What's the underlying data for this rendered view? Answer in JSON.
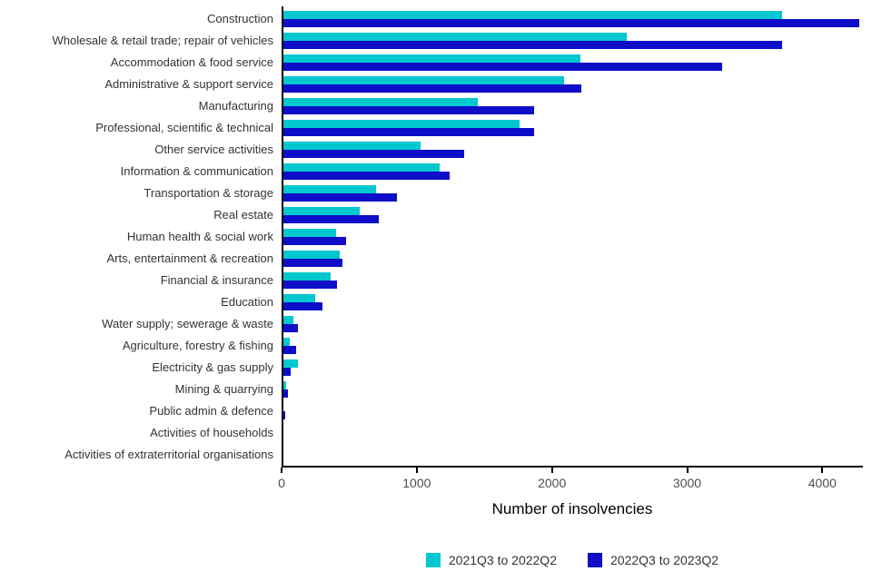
{
  "chart_data": {
    "type": "bar",
    "orientation": "horizontal",
    "title": "",
    "xlabel": "Number of insolvencies",
    "ylabel": "",
    "xlim": [
      0,
      4300
    ],
    "x_ticks": [
      0,
      1000,
      2000,
      3000,
      4000
    ],
    "grid": false,
    "legend_position": "bottom",
    "categories": [
      "Construction",
      "Wholesale & retail trade; repair of vehicles",
      "Accommodation & food service",
      "Administrative & support service",
      "Manufacturing",
      "Professional, scientific & technical",
      "Other service activities",
      "Information & communication",
      "Transportation & storage",
      "Real estate",
      "Human health & social work",
      "Arts, entertainment & recreation",
      "Financial & insurance",
      "Education",
      "Water supply; sewerage & waste",
      "Agriculture, forestry & fishing",
      "Electricity & gas supply",
      "Mining & quarrying",
      "Public admin & defence",
      "Activities of households",
      "Activities of extraterritorial organisations"
    ],
    "series": [
      {
        "name": "2021Q3 to 2022Q2",
        "color": "#00C8CE",
        "values": [
          3700,
          2550,
          2210,
          2090,
          1450,
          1760,
          1030,
          1170,
          700,
          580,
          400,
          430,
          360,
          250,
          90,
          60,
          120,
          35,
          15,
          0,
          0
        ]
      },
      {
        "name": "2022Q3 to 2023Q2",
        "color": "#0E0EC8",
        "values": [
          4270,
          3700,
          3260,
          2220,
          1870,
          1870,
          1350,
          1240,
          850,
          720,
          480,
          450,
          410,
          300,
          120,
          110,
          70,
          45,
          30,
          5,
          0
        ]
      }
    ]
  }
}
